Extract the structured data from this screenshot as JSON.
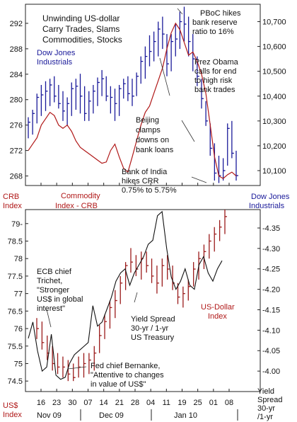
{
  "chart_data": [
    {
      "type": "line",
      "title": "Unwinding US-dollar Carry Trades, Slams Commodities, Stocks",
      "left_axis": {
        "label": "CRB Index",
        "ticks": [
          268,
          272,
          276,
          280,
          284,
          288,
          292
        ],
        "range": [
          266.5,
          295
        ]
      },
      "right_axis": {
        "label": "Dow Jones Industrials",
        "ticks": [
          "10,100",
          "10,200",
          "10,300",
          "10,400",
          "10,500",
          "10,600",
          "10,700"
        ],
        "range": [
          10040,
          10770
        ]
      },
      "series": [
        {
          "name": "Dow Jones Industrials",
          "kind": "ohlc",
          "color": "#1a1a9a",
          "bars": [
            [
              10230,
              10315,
              10295
            ],
            [
              10245,
              10345,
              10330
            ],
            [
              10290,
              10410,
              10395
            ],
            [
              10320,
              10445,
              10405
            ],
            [
              10340,
              10460,
              10420
            ],
            [
              10360,
              10470,
              10445
            ],
            [
              10375,
              10480,
              10400
            ],
            [
              10350,
              10445,
              10370
            ],
            [
              10300,
              10420,
              10340
            ],
            [
              10280,
              10395,
              10370
            ],
            [
              10320,
              10455,
              10430
            ],
            [
              10345,
              10470,
              10440
            ],
            [
              10330,
              10490,
              10400
            ],
            [
              10300,
              10440,
              10330
            ],
            [
              10300,
              10420,
              10380
            ],
            [
              10330,
              10445,
              10420
            ],
            [
              10360,
              10475,
              10455
            ],
            [
              10400,
              10505,
              10470
            ],
            [
              10380,
              10480,
              10400
            ],
            [
              10330,
              10440,
              10395
            ],
            [
              10300,
              10430,
              10370
            ],
            [
              10320,
              10445,
              10430
            ],
            [
              10390,
              10470,
              10450
            ],
            [
              10380,
              10480,
              10410
            ],
            [
              10360,
              10470,
              10400
            ],
            [
              10400,
              10495,
              10480
            ],
            [
              10450,
              10560,
              10540
            ],
            [
              10470,
              10600,
              10560
            ],
            [
              10520,
              10645,
              10580
            ],
            [
              10540,
              10660,
              10620
            ],
            [
              10560,
              10700,
              10670
            ],
            [
              10590,
              10720,
              10650
            ],
            [
              10480,
              10650,
              10530
            ],
            [
              10500,
              10650,
              10620
            ],
            [
              10560,
              10690,
              10630
            ],
            [
              10590,
              10740,
              10700
            ],
            [
              10620,
              10760,
              10690
            ],
            [
              10560,
              10720,
              10620
            ],
            [
              10500,
              10650,
              10550
            ],
            [
              10440,
              10560,
              10480
            ],
            [
              10350,
              10470,
              10390
            ],
            [
              10280,
              10380,
              10300
            ],
            [
              10160,
              10290,
              10190
            ],
            [
              10060,
              10210,
              10090
            ],
            [
              10050,
              10160,
              10080
            ],
            [
              10060,
              10150,
              10100
            ],
            [
              10120,
              10290,
              10270
            ],
            [
              10150,
              10300,
              10170
            ],
            [
              10060,
              10180,
              10080
            ]
          ]
        },
        {
          "name": "Commodity Index - CRB",
          "kind": "line",
          "color": "#b01818",
          "values": [
            272,
            273,
            274,
            276,
            277,
            278,
            277.5,
            276,
            275.5,
            276,
            275,
            273.5,
            272.5,
            272,
            271.5,
            271,
            270.5,
            270,
            270.2,
            272,
            273,
            271,
            269.2,
            268.6,
            271,
            273.5,
            276,
            278,
            279,
            281,
            283,
            285,
            288,
            290.5,
            292,
            291,
            289,
            287,
            287.5,
            286,
            284,
            281,
            276,
            271,
            268,
            267.6,
            268.2,
            268.6,
            268
          ]
        }
      ],
      "annotations": [
        "PBoC hikes bank reserve ratio to 16%",
        "Prez Obama calls for end to high risk bank trades",
        "Beijing clamps downs on bank loans",
        "Bank of India hikes CRR 0.75% to 5.75%"
      ]
    },
    {
      "type": "line",
      "left_axis": {
        "label": "US$ Index",
        "ticks": [
          "74.5",
          "75",
          "75.5",
          "76",
          "76.5",
          "77",
          "77.5",
          "78",
          "78.5",
          "79-"
        ],
        "range": [
          74.2,
          79.4
        ]
      },
      "right_axis": {
        "label": "Yield Spread 30-yr /1-yr",
        "ticks": [
          "4.00",
          "4.05",
          "4.10",
          "4.15",
          "4.20",
          "4.25",
          "4.30",
          "4.35"
        ],
        "range": [
          3.95,
          4.395
        ]
      },
      "series": [
        {
          "name": "US-Dollar Index",
          "kind": "ohlc",
          "color": "#9a1a1a",
          "bars": [
            [
              75.7,
              76.3,
              76.0
            ],
            [
              75.4,
              76.2,
              75.6
            ],
            [
              75.1,
              75.8,
              75.3
            ],
            [
              74.8,
              75.5,
              75.0
            ],
            [
              74.7,
              75.3,
              74.9
            ],
            [
              74.6,
              75.2,
              74.9
            ],
            [
              74.5,
              75.1,
              74.7
            ],
            [
              74.5,
              75.0,
              74.6
            ],
            [
              74.6,
              75.2,
              74.9
            ],
            [
              74.6,
              75.3,
              75.0
            ],
            [
              74.7,
              75.3,
              75.1
            ],
            [
              74.8,
              75.5,
              75.3
            ],
            [
              75.3,
              76.1,
              75.8
            ],
            [
              75.7,
              76.4,
              76.2
            ],
            [
              76.0,
              76.8,
              76.6
            ],
            [
              76.3,
              77.1,
              76.8
            ],
            [
              76.7,
              77.5,
              77.3
            ],
            [
              77.1,
              77.9,
              77.8
            ],
            [
              77.6,
              78.3,
              77.9
            ],
            [
              77.5,
              78.1,
              77.7
            ],
            [
              77.4,
              78.2,
              78.0
            ],
            [
              77.6,
              78.2,
              77.8
            ],
            [
              77.3,
              78.0,
              77.5
            ],
            [
              77.0,
              77.8,
              77.3
            ],
            [
              77.2,
              78.0,
              77.8
            ],
            [
              77.4,
              78.1,
              77.7
            ],
            [
              77.1,
              77.8,
              77.3
            ],
            [
              76.7,
              77.3,
              76.9
            ],
            [
              76.6,
              77.2,
              77.0
            ],
            [
              76.8,
              77.4,
              77.2
            ],
            [
              77.2,
              77.9,
              77.7
            ],
            [
              77.4,
              78.2,
              78.0
            ],
            [
              77.7,
              78.4,
              78.2
            ],
            [
              78.0,
              78.7,
              78.5
            ],
            [
              78.2,
              78.9,
              78.7
            ],
            [
              78.5,
              79.1,
              78.9
            ],
            [
              78.7,
              79.4,
              79.2
            ]
          ]
        },
        {
          "name": "Yield Spread 30-yr / 1-yr US Treasury",
          "kind": "line",
          "color": "#111111",
          "values": [
            4.08,
            4.12,
            4.05,
            4.0,
            4.01,
            4.09,
            3.99,
            3.98,
            3.985,
            4.02,
            4.04,
            4.05,
            4.06,
            4.07,
            4.16,
            4.11,
            4.12,
            4.15,
            4.18,
            4.22,
            4.24,
            4.25,
            4.21,
            4.24,
            4.26,
            4.28,
            4.31,
            4.32,
            4.38,
            4.39,
            4.3,
            4.23,
            4.2,
            4.22,
            4.25,
            4.21,
            4.2,
            4.26,
            4.28,
            4.24,
            4.22,
            4.25,
            4.27
          ]
        }
      ],
      "annotations": [
        "ECB chief Trichet, \"Stronger US$ in global interest\"",
        "Yield Spread 30-yr / 1-yr US Treasury",
        "Fed chief Bernanke, \"Attentive to changes in value of US$\""
      ]
    }
  ],
  "x_axis": {
    "day_ticks": [
      "16",
      "23",
      "30",
      "07",
      "14",
      "21",
      "28",
      "04",
      "11",
      "19",
      "25",
      "01",
      "08"
    ],
    "month_labels": [
      "Nov 09",
      "Dec 09",
      "Jan 10"
    ]
  },
  "labels": {
    "title_lines": [
      "Unwinding US-dollar",
      "Carry Trades, Slams",
      "Commodities, Stocks"
    ],
    "dow_label_lines": [
      "Dow Jones",
      "Industrials"
    ],
    "pboc_lines": [
      "PBoC hikes",
      "bank reserve",
      "ratio to 16%"
    ],
    "obama_lines": [
      "Prez Obama",
      "calls for end",
      "to high risk",
      "bank trades"
    ],
    "beijing_lines": [
      "Beijing",
      "clamps",
      "downs on",
      "bank loans"
    ],
    "india_lines": [
      "Bank of India",
      "hikes CRR",
      "0.75% to 5.75%"
    ],
    "crb_axis_lines": [
      "CRB",
      "Index"
    ],
    "crb_series_lines": [
      "Commodity",
      "Index - CRB"
    ],
    "dow_axis_lines": [
      "Dow Jones",
      "Industrials"
    ],
    "ecb_lines": [
      "ECB chief",
      "Trichet,",
      "\"Stronger",
      "US$ in global",
      "interest\""
    ],
    "yield_lines": [
      "Yield Spread",
      "30-yr / 1-yr",
      "US Treasury"
    ],
    "usd_series_lines": [
      "US-Dollar",
      "Index"
    ],
    "fed_lines": [
      "Fed chief Bernanke,",
      "\"Attentive to changes",
      "in value of US$\""
    ],
    "usd_axis_lines": [
      "US$",
      "Index"
    ],
    "yield_axis_lines": [
      "Yield",
      "Spread",
      "30-yr",
      "/1-yr"
    ]
  },
  "colors": {
    "dow": "#1a1a9a",
    "crb": "#b01818",
    "usd": "#9a1a1a",
    "yield": "#111111",
    "frame": "#222222"
  }
}
